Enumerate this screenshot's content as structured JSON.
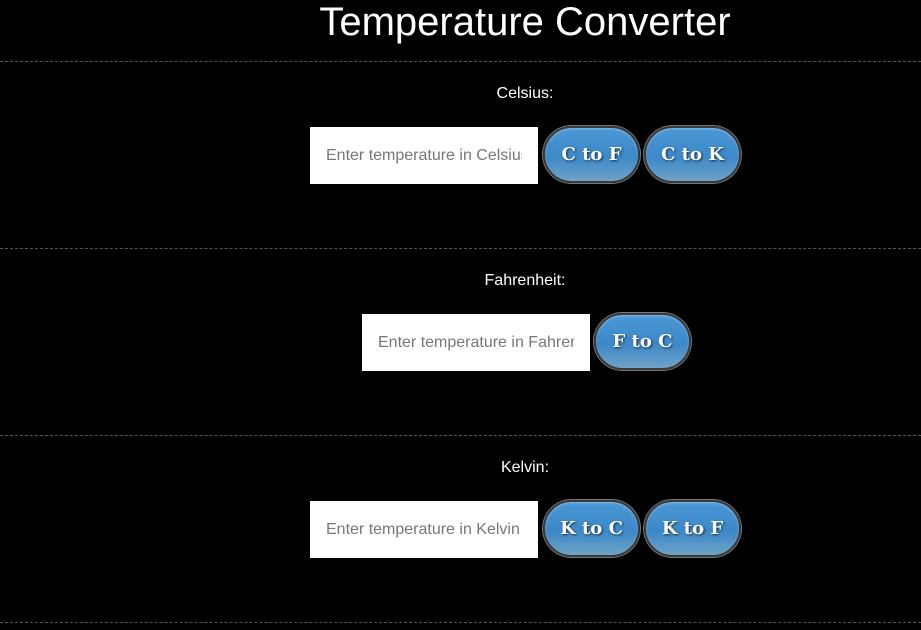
{
  "header": {
    "title": "Temperature Converter"
  },
  "sections": {
    "celsius": {
      "label": "Celsius:",
      "placeholder": "Enter temperature in Celsius",
      "buttons": [
        "C to F",
        "C to K"
      ]
    },
    "fahrenheit": {
      "label": "Fahrenheit:",
      "placeholder": "Enter temperature in Fahrenheit",
      "buttons": [
        "F to C"
      ]
    },
    "kelvin": {
      "label": "Kelvin:",
      "placeholder": "Enter temperature in Kelvin",
      "buttons": [
        "K to C",
        "K to F"
      ]
    }
  },
  "colors": {
    "background": "#000000",
    "button_top": "#4b98d6",
    "button_bottom": "#6ea2c7",
    "divider": "#555555"
  }
}
